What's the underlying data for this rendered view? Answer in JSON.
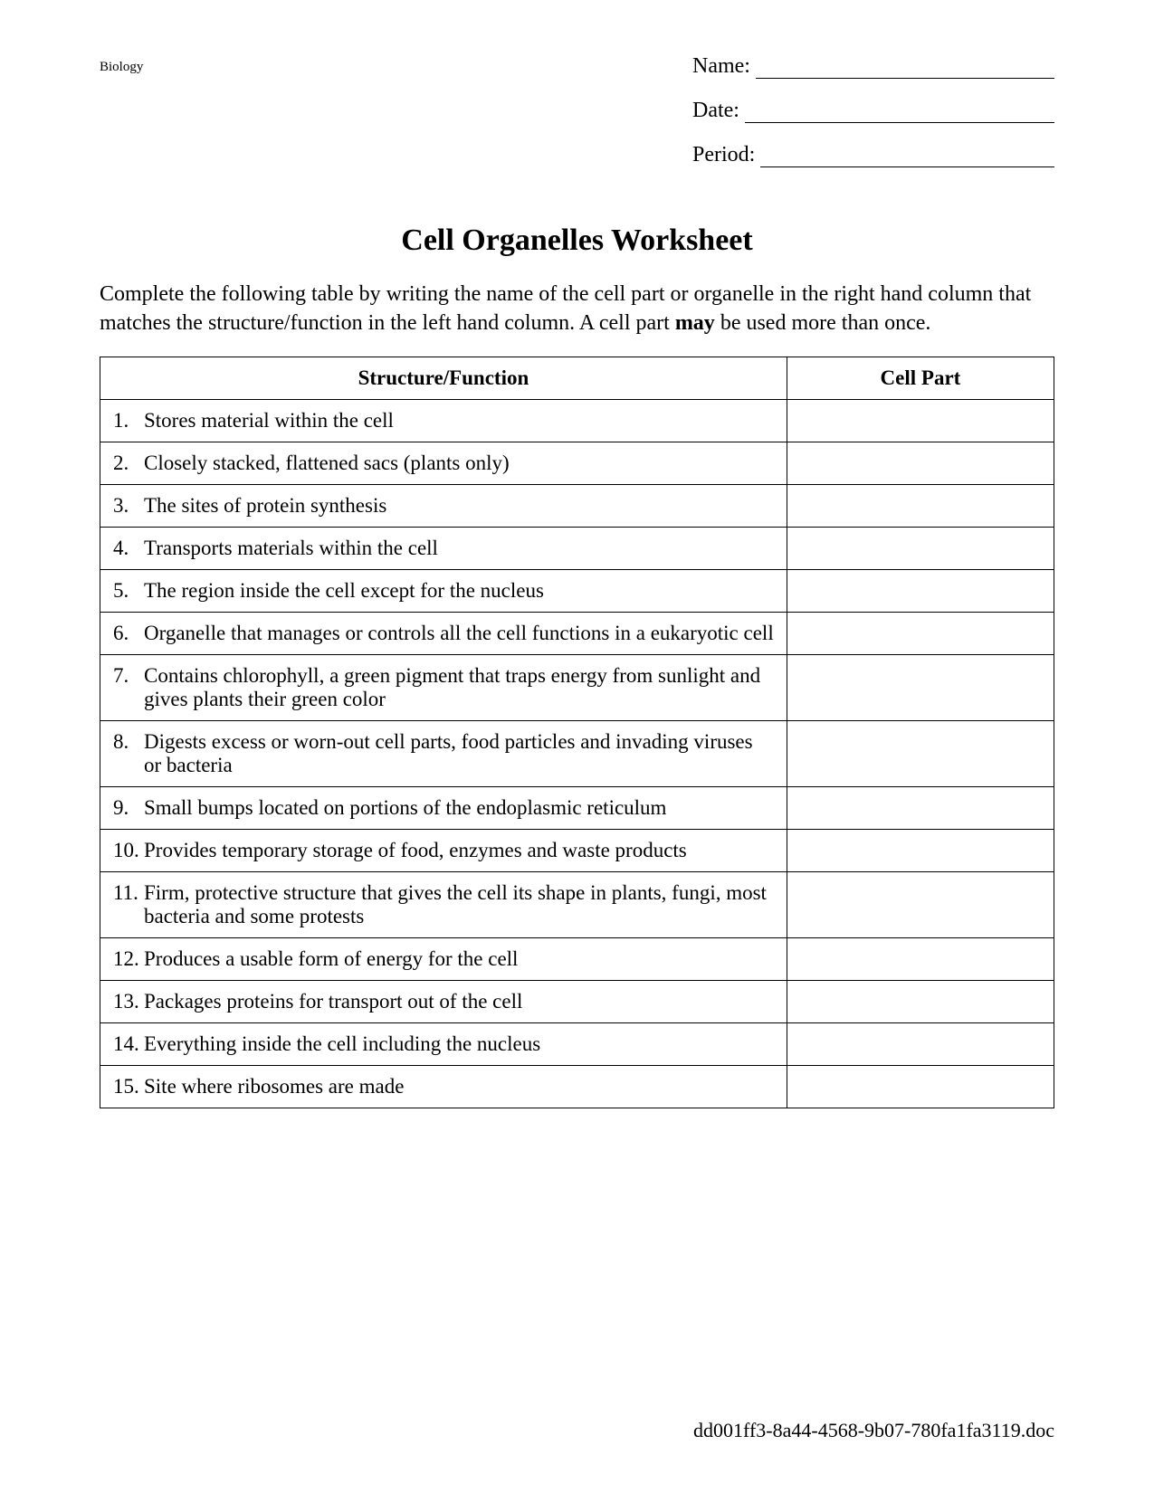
{
  "header": {
    "subject": "Biology",
    "fields": [
      {
        "label": "Name:"
      },
      {
        "label": "Date:"
      },
      {
        "label": "Period:"
      }
    ]
  },
  "title": "Cell Organelles Worksheet",
  "instructions": {
    "pre": "Complete the following table by writing the name of the cell part or organelle in the right hand column that matches the structure/function in the left hand column. A cell part ",
    "bold": "may",
    "post": " be used more than once."
  },
  "table": {
    "columns": [
      "Structure/Function",
      "Cell Part"
    ],
    "rows": [
      {
        "num": "1.",
        "text": "Stores material within the cell"
      },
      {
        "num": "2.",
        "text": "Closely stacked, flattened sacs (plants only)"
      },
      {
        "num": "3.",
        "text": "The sites of protein synthesis"
      },
      {
        "num": "4.",
        "text": "Transports materials within the cell"
      },
      {
        "num": "5.",
        "text": "The region inside the cell except for the nucleus"
      },
      {
        "num": "6.",
        "text": "Organelle that manages or controls all the cell functions in a eukaryotic cell"
      },
      {
        "num": "7.",
        "text": "Contains chlorophyll, a green pigment that traps energy from sunlight and gives plants their green color"
      },
      {
        "num": "8.",
        "text": "Digests excess or worn-out cell parts, food particles and invading viruses or bacteria"
      },
      {
        "num": "9.",
        "text": "Small bumps located on portions of the endoplasmic reticulum"
      },
      {
        "num": "10.",
        "text": "Provides temporary storage of food, enzymes and waste products"
      },
      {
        "num": "11.",
        "text": "Firm, protective structure that gives the cell its shape in plants, fungi, most bacteria and some protests"
      },
      {
        "num": "12.",
        "text": "Produces a usable form of energy for the cell"
      },
      {
        "num": "13.",
        "text": "Packages proteins for transport out of the cell"
      },
      {
        "num": "14.",
        "text": "Everything inside the cell including the nucleus"
      },
      {
        "num": "15.",
        "text": "Site where ribosomes are made"
      }
    ]
  },
  "footer": "dd001ff3-8a44-4568-9b07-780fa1fa3119.doc"
}
